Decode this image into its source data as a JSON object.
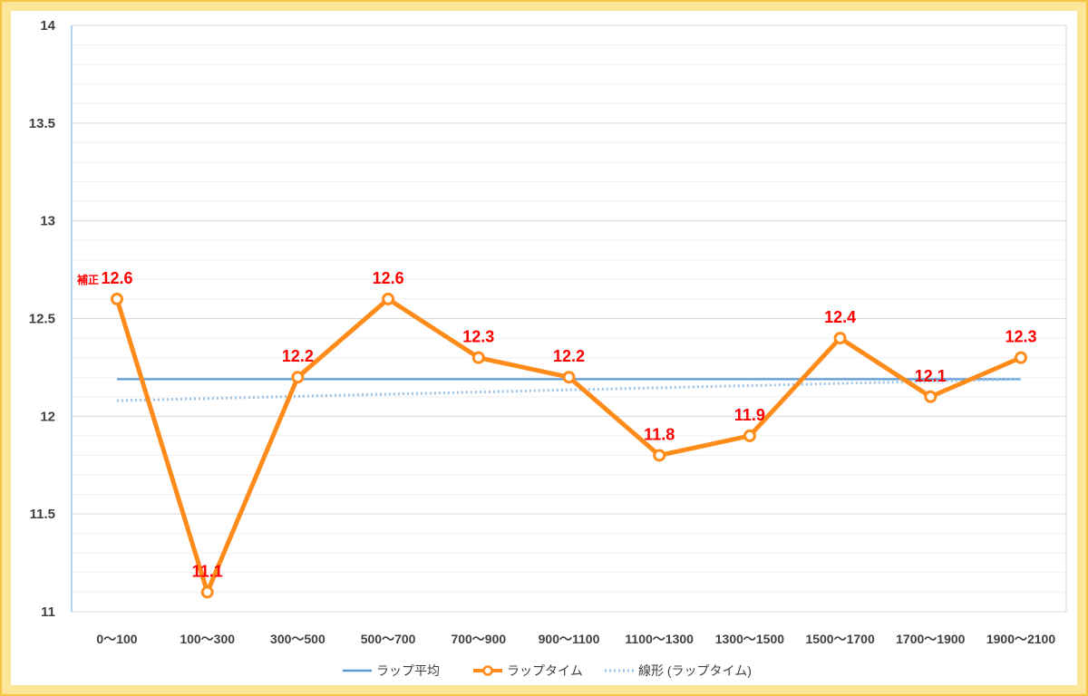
{
  "chart_data": {
    "type": "line",
    "categories": [
      "0～100",
      "100～300",
      "300～500",
      "500～700",
      "700～900",
      "900～1100",
      "1100～1300",
      "1300～1500",
      "1500～1700",
      "1700～1900",
      "1900～2100"
    ],
    "series": [
      {
        "name": "ラップタイム",
        "values": [
          12.6,
          11.1,
          12.2,
          12.6,
          12.3,
          12.2,
          11.8,
          11.9,
          12.4,
          12.1,
          12.3
        ],
        "color": "#ff8c1a",
        "style": "line-markers"
      },
      {
        "name": "ラップ平均",
        "values": [
          12.19,
          12.19,
          12.19,
          12.19,
          12.19,
          12.19,
          12.19,
          12.19,
          12.19,
          12.19,
          12.19
        ],
        "color": "#5b9bd5",
        "style": "line"
      },
      {
        "name": "線形 (ラップタイム)",
        "values": [
          12.08,
          12.091,
          12.102,
          12.113,
          12.124,
          12.135,
          12.146,
          12.157,
          12.168,
          12.179,
          12.19
        ],
        "color": "#9dc3e6",
        "style": "dotted"
      }
    ],
    "data_labels": [
      "12.6",
      "11.1",
      "12.2",
      "12.6",
      "12.3",
      "12.2",
      "11.8",
      "11.9",
      "12.4",
      "12.1",
      "12.3"
    ],
    "first_label_prefix": "補正",
    "yticks": [
      "14",
      "13.5",
      "13",
      "12.5",
      "12",
      "11.5",
      "11"
    ],
    "ylim": [
      11,
      14
    ],
    "grid": true,
    "legend": {
      "position": "bottom",
      "items": [
        "ラップ平均",
        "ラップタイム",
        "線形 (ラップタイム)"
      ]
    },
    "title": "",
    "xlabel": "",
    "ylabel": ""
  }
}
